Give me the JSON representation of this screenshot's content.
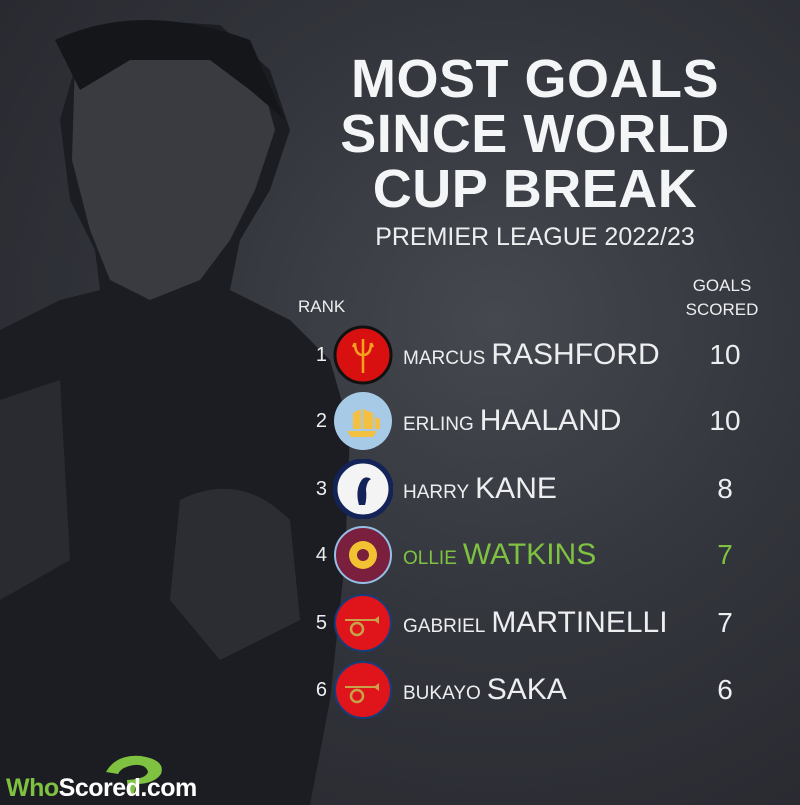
{
  "title": {
    "lines": [
      "MOST GOALS",
      "SINCE WORLD",
      "CUP BREAK"
    ],
    "subtitle": "PREMIER LEAGUE 2022/23"
  },
  "headers": {
    "rank": "RANK",
    "goals_line1": "GOALS",
    "goals_line2": "SCORED"
  },
  "colors": {
    "highlight": "#7fc241",
    "text": "#eceef0",
    "background": "#2c2e35"
  },
  "rows": [
    {
      "rank": "1",
      "first": "MARCUS",
      "last": "RASHFORD",
      "goals": "10",
      "club_icon": "manchester-united-trident-icon"
    },
    {
      "rank": "2",
      "first": "ERLING",
      "last": "HAALAND",
      "goals": "10",
      "club_icon": "manchester-city-ship-icon"
    },
    {
      "rank": "3",
      "first": "HARRY",
      "last": "KANE",
      "goals": "8",
      "club_icon": "tottenham-cockerel-icon"
    },
    {
      "rank": "4",
      "first": "OLLIE",
      "last": "WATKINS",
      "goals": "7",
      "club_icon": "aston-villa-lion-icon",
      "highlight": true
    },
    {
      "rank": "5",
      "first": "GABRIEL",
      "last": "MARTINELLI",
      "goals": "7",
      "club_icon": "arsenal-cannon-icon"
    },
    {
      "rank": "6",
      "first": "BUKAYO",
      "last": "SAKA",
      "goals": "6",
      "club_icon": "arsenal-cannon-icon"
    }
  ],
  "brand": {
    "name_part1": "Who",
    "name_part2": "Scored",
    "name_part3": ".com"
  }
}
